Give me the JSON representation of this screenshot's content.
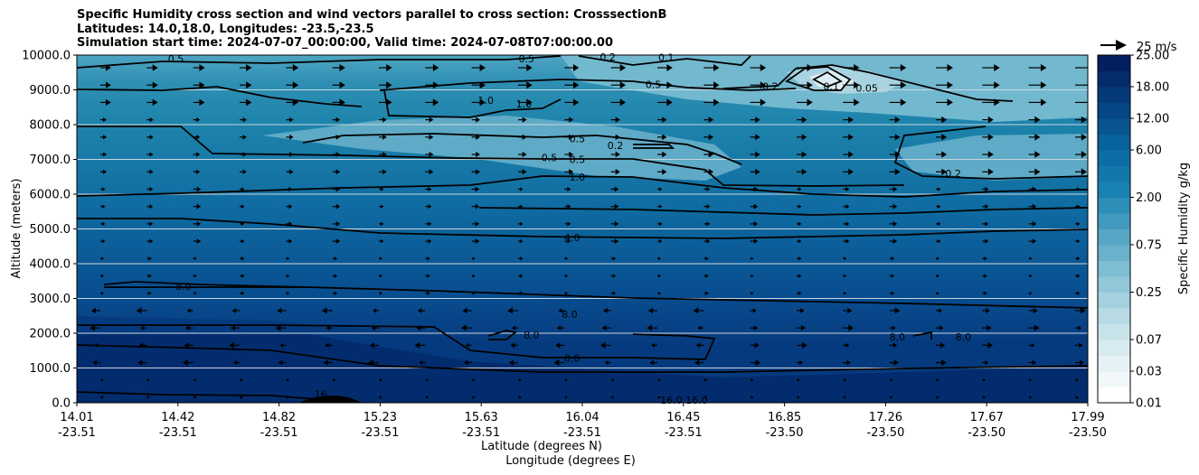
{
  "chart_data": {
    "type": "heatmap",
    "title_lines": [
      "Specific Humidity cross section and wind vectors parallel to cross section: CrosssectionB",
      "Latitudes: 14.0,18.0, Longitudes: -23.5,-23.5",
      "Simulation start time: 2024-07-07_00:00:00, Valid time: 2024-07-08T07:00:00.00"
    ],
    "ylabel": "Altitude (meters)",
    "xlabel_lines": [
      "Latitude (degrees N)",
      "Longitude (degrees E)"
    ],
    "ylim": [
      0,
      10000
    ],
    "yticks": [
      "0.0",
      "1000.0",
      "2000.0",
      "3000.0",
      "4000.0",
      "5000.0",
      "6000.0",
      "7000.0",
      "8000.0",
      "9000.0",
      "10000.0"
    ],
    "ytick_values": [
      0,
      1000,
      2000,
      3000,
      4000,
      5000,
      6000,
      7000,
      8000,
      9000,
      10000
    ],
    "xticks_lat": [
      "14.01",
      "14.42",
      "14.82",
      "15.23",
      "15.63",
      "16.04",
      "16.45",
      "16.85",
      "17.26",
      "17.67",
      "17.99"
    ],
    "xticks_lon": [
      "-23.51",
      "-23.51",
      "-23.51",
      "-23.51",
      "-23.51",
      "-23.51",
      "-23.51",
      "-23.50",
      "-23.50",
      "-23.50",
      "-23.50"
    ],
    "xlim": [
      14.01,
      17.99
    ],
    "colorbar": {
      "label": "Specific Humidity g/kg",
      "levels": [
        0.01,
        0.02,
        0.03,
        0.05,
        0.07,
        0.1,
        0.15,
        0.25,
        0.35,
        0.5,
        0.75,
        1.0,
        1.5,
        2.0,
        3.0,
        4.0,
        6.0,
        8.0,
        12.0,
        15.0,
        18.0,
        21.0,
        25.0
      ],
      "tick_labels": [
        "0.01",
        "0.03",
        "0.07",
        "0.25",
        "0.75",
        "2.00",
        "6.00",
        "12.00",
        "18.00",
        "25.00"
      ],
      "tick_indices": [
        0,
        2,
        4,
        7,
        10,
        13,
        16,
        18,
        20,
        22
      ]
    },
    "wind_key_label": "25 m/s",
    "contour_labels": [
      {
        "text": "0.5",
        "x": 14.4,
        "y": 9900
      },
      {
        "text": "0.5",
        "x": 15.78,
        "y": 9900
      },
      {
        "text": "0.2",
        "x": 16.1,
        "y": 9950
      },
      {
        "text": "0.1",
        "x": 16.33,
        "y": 9930
      },
      {
        "text": "0.5",
        "x": 16.28,
        "y": 9150
      },
      {
        "text": "0.2",
        "x": 16.74,
        "y": 9100
      },
      {
        "text": "0.1",
        "x": 16.98,
        "y": 9100
      },
      {
        "text": "0.05",
        "x": 17.12,
        "y": 9050
      },
      {
        "text": "1.0",
        "x": 15.62,
        "y": 8700
      },
      {
        "text": "1.0",
        "x": 15.77,
        "y": 8600
      },
      {
        "text": "0.5",
        "x": 15.98,
        "y": 7600
      },
      {
        "text": "0.2",
        "x": 16.13,
        "y": 7400
      },
      {
        "text": "0.5",
        "x": 15.87,
        "y": 7050
      },
      {
        "text": "0.5",
        "x": 15.98,
        "y": 7000
      },
      {
        "text": "1.0",
        "x": 15.98,
        "y": 6500
      },
      {
        "text": "0.2",
        "x": 17.46,
        "y": 6600
      },
      {
        "text": "4.0",
        "x": 15.96,
        "y": 4750
      },
      {
        "text": "8.0",
        "x": 14.43,
        "y": 3350
      },
      {
        "text": "8.0",
        "x": 15.95,
        "y": 2550
      },
      {
        "text": "8.0",
        "x": 15.8,
        "y": 1950
      },
      {
        "text": "8.0",
        "x": 17.24,
        "y": 1900
      },
      {
        "text": "8.0",
        "x": 17.5,
        "y": 1900
      },
      {
        "text": "8.0",
        "x": 15.96,
        "y": 1290
      },
      {
        "text": "16",
        "x": 14.97,
        "y": 250
      },
      {
        "text": "16.0",
        "x": 16.35,
        "y": 80
      },
      {
        "text": "16.0",
        "x": 16.45,
        "y": 80
      }
    ]
  }
}
